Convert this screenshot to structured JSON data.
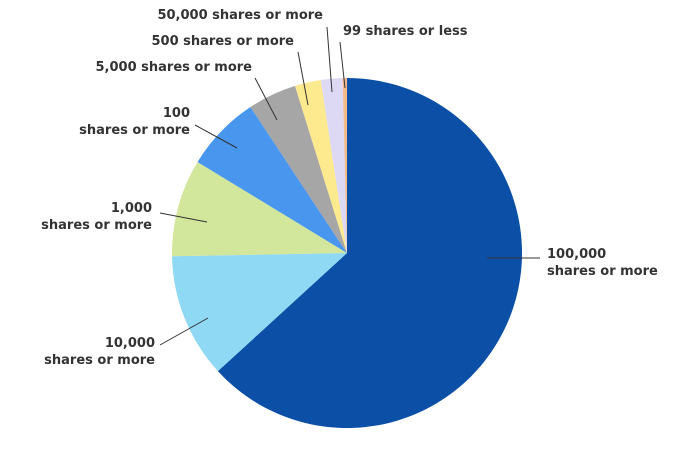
{
  "chart_data": {
    "type": "pie",
    "categories": [
      "100,000\nshares or more",
      "10,000\nshares or more",
      "1,000\nshares or more",
      "100\nshares or more",
      "5,000 shares or more",
      "500 shares or more",
      "50,000 shares or more",
      "99 shares or less"
    ],
    "values": [
      63.2,
      11.5,
      9,
      7,
      4.5,
      2.4,
      2,
      0.4
    ],
    "colors": [
      "#0b4fa6",
      "#8fd9f4",
      "#d2e69c",
      "#4896ee",
      "#a6a6a6",
      "#fde98e",
      "#ddd8f4",
      "#f2b98a"
    ]
  }
}
